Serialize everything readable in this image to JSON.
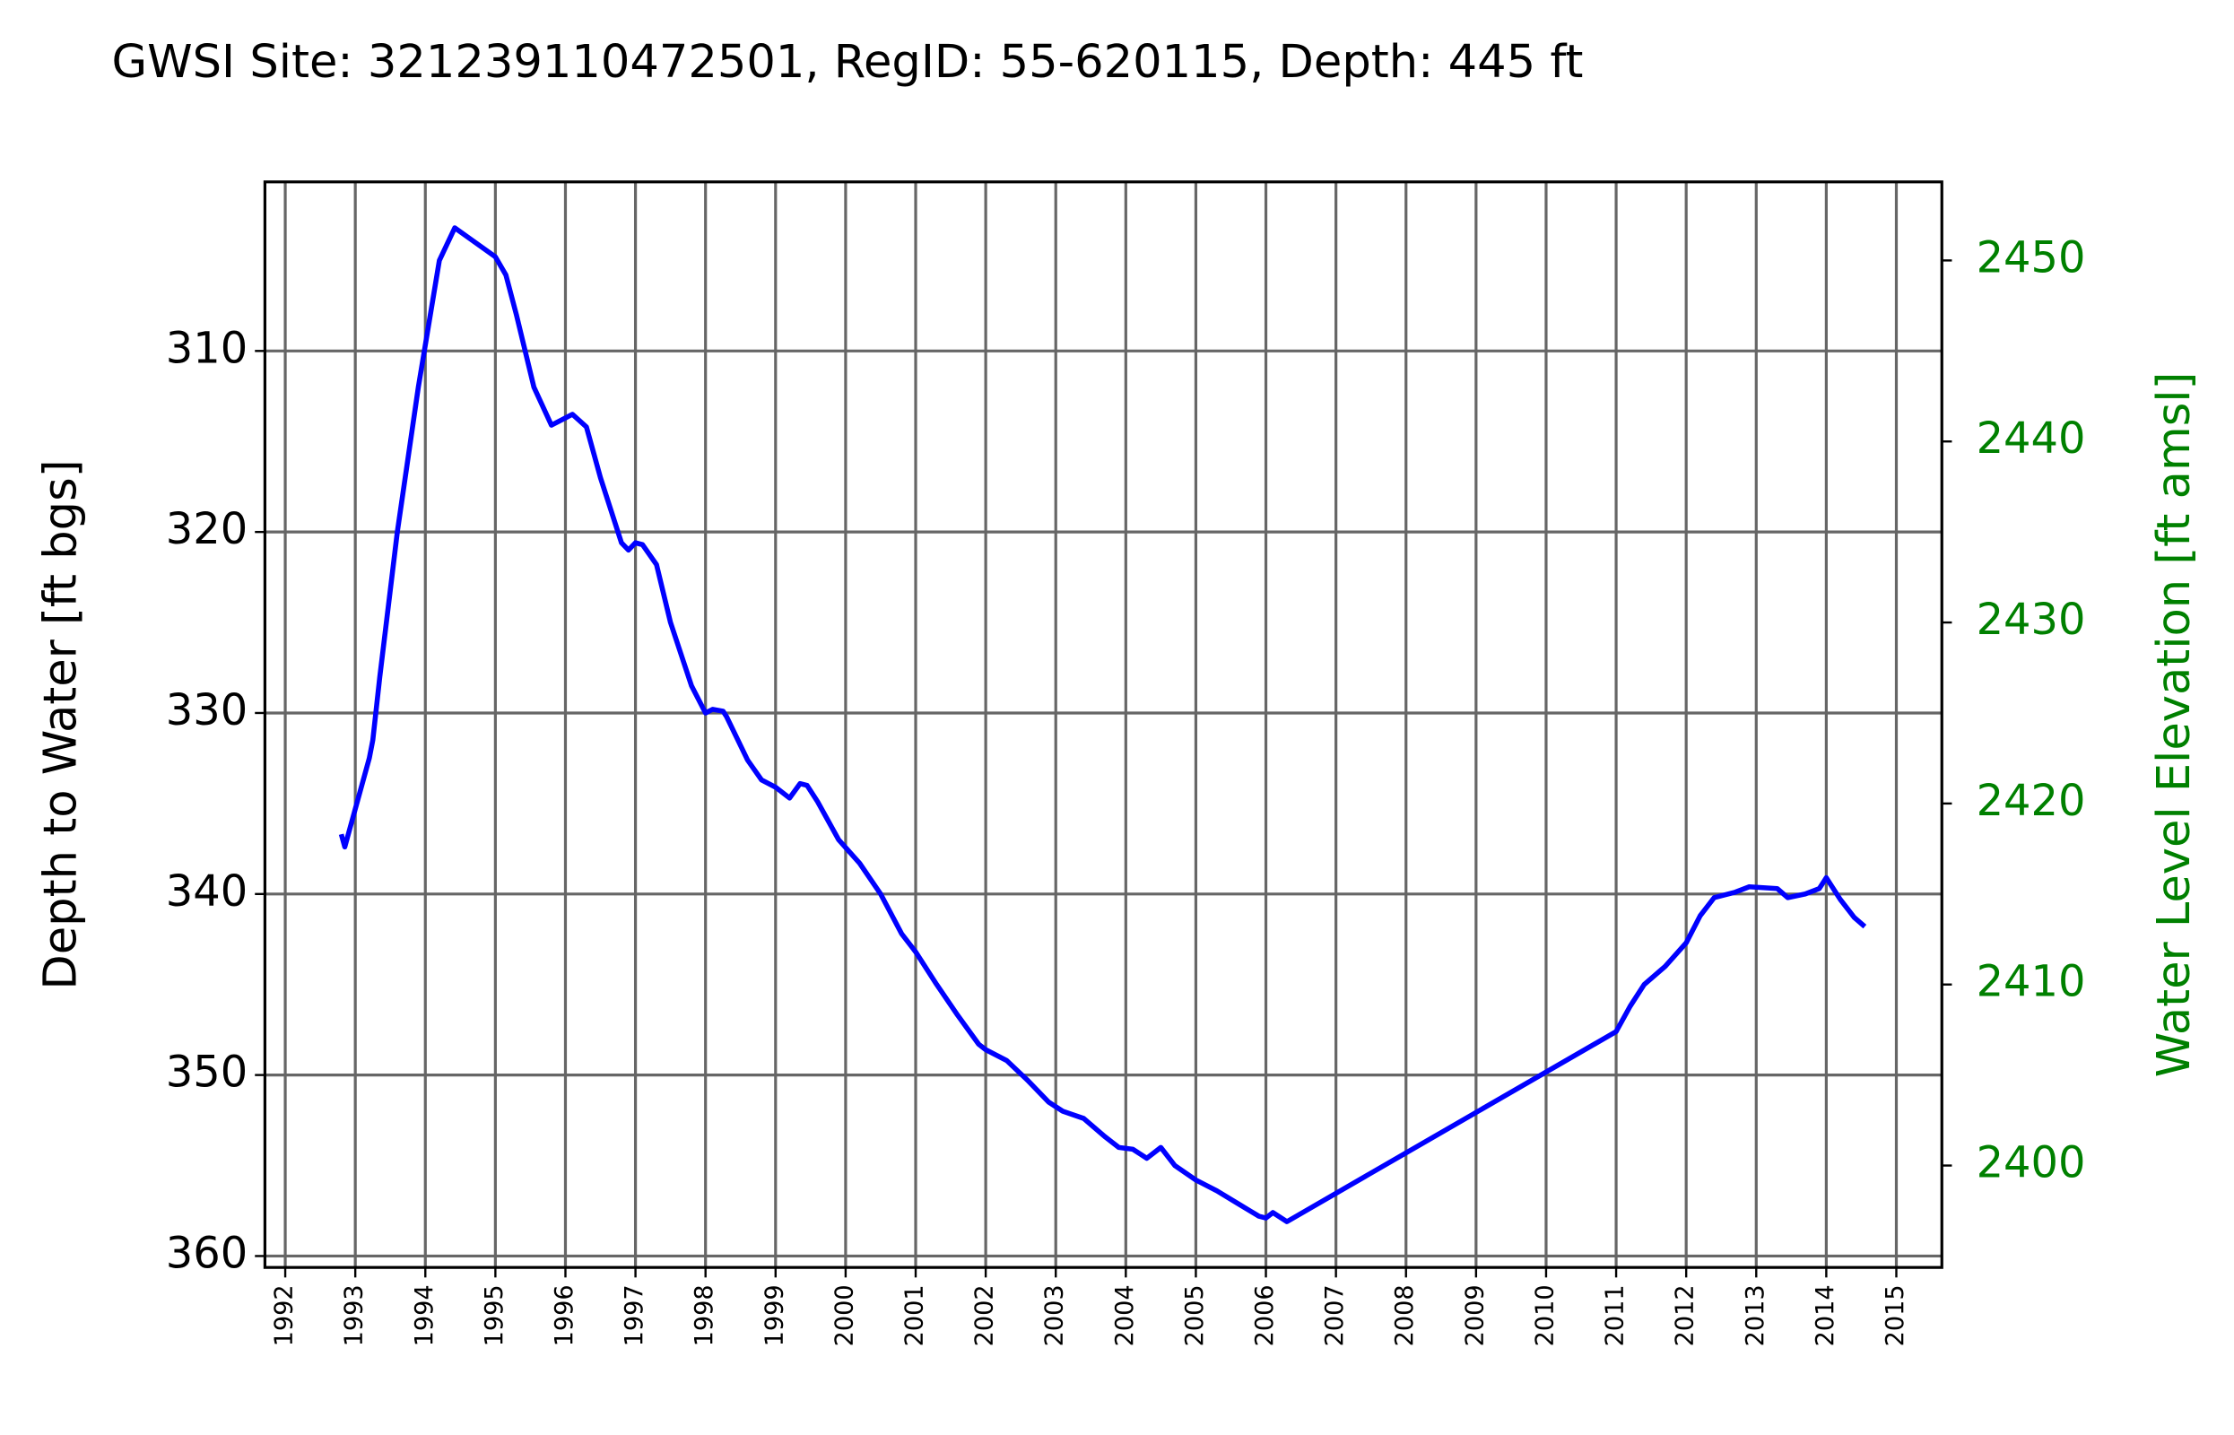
{
  "chart_data": {
    "type": "line",
    "title": "GWSI Site: 321239110472501, RegID: 55-620115, Depth: 445 ft",
    "y_label": "Depth to Water [ft bgs]",
    "y2_label": "Water Level Elevation [ft amsl]",
    "y2_color": "#008000",
    "grid": true,
    "y_inverted": true,
    "x": [
      1992.8,
      1992.85,
      1993.2,
      1993.25,
      1993.35,
      1993.6,
      1993.9,
      1994.2,
      1994.42,
      1995.0,
      1995.15,
      1995.3,
      1995.55,
      1995.8,
      1996.0,
      1996.1,
      1996.3,
      1996.5,
      1996.8,
      1996.9,
      1997.0,
      1997.1,
      1997.3,
      1997.5,
      1997.8,
      1998.0,
      1998.1,
      1998.25,
      1998.3,
      1998.6,
      1998.8,
      1999.0,
      1999.2,
      1999.35,
      1999.45,
      1999.6,
      1999.9,
      2000.2,
      2000.5,
      2000.8,
      2001.0,
      2001.3,
      2001.6,
      2001.9,
      2002.0,
      2002.3,
      2002.6,
      2002.9,
      2003.1,
      2003.4,
      2003.7,
      2003.9,
      2004.1,
      2004.3,
      2004.5,
      2004.7,
      2005.0,
      2005.3,
      2005.6,
      2005.9,
      2006.0,
      2006.1,
      2006.3,
      2011.0,
      2011.2,
      2011.4,
      2011.7,
      2012.0,
      2012.2,
      2012.4,
      2012.7,
      2012.9,
      2013.3,
      2013.45,
      2013.7,
      2013.9,
      2014.0,
      2014.2,
      2014.4,
      2014.55
    ],
    "series": [
      {
        "color": "#0000ff",
        "values": [
          336.7,
          337.4,
          332.5,
          331.5,
          328,
          320,
          312,
          305,
          303.2,
          304.8,
          305.8,
          308,
          312,
          314.1,
          313.7,
          313.5,
          314.2,
          317,
          320.6,
          321,
          320.6,
          320.7,
          321.8,
          325,
          328.5,
          330.0,
          329.8,
          329.9,
          330.2,
          332.6,
          333.7,
          334.1,
          334.7,
          333.9,
          334,
          334.9,
          337,
          338.3,
          340,
          342.2,
          343.2,
          345,
          346.7,
          348.3,
          348.6,
          349.2,
          350.3,
          351.5,
          352,
          352.4,
          353.4,
          354.0,
          354.1,
          354.6,
          354.0,
          355.0,
          355.8,
          356.4,
          357.1,
          357.8,
          357.9,
          357.6,
          358.1,
          347.6,
          346.2,
          345,
          344,
          342.7,
          341.2,
          340.2,
          339.9,
          339.6,
          339.7,
          340.2,
          340,
          339.7,
          339.1,
          340.3,
          341.3,
          341.8
        ]
      }
    ],
    "xlim": [
      1991.71,
      2015.65
    ],
    "xticks": [
      1992,
      1993,
      1994,
      1995,
      1996,
      1997,
      1998,
      1999,
      2000,
      2001,
      2002,
      2003,
      2004,
      2005,
      2006,
      2007,
      2008,
      2009,
      2010,
      2011,
      2012,
      2013,
      2014,
      2015
    ],
    "ylim": [
      360.63,
      300.66
    ],
    "yticks": [
      310,
      320,
      330,
      340,
      350,
      360
    ],
    "y2lim": [
      2394.37,
      2454.34
    ],
    "y2ticks": [
      2400,
      2410,
      2420,
      2430,
      2440,
      2450
    ]
  }
}
